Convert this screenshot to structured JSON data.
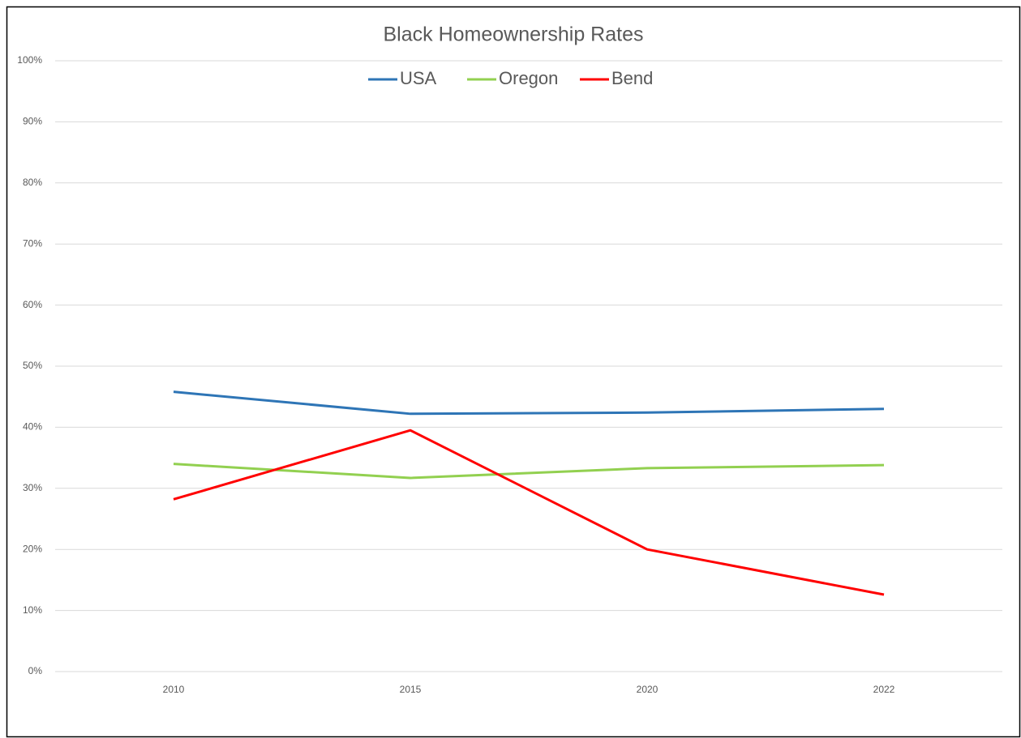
{
  "chart_data": {
    "type": "line",
    "title": "Black Homeownership Rates",
    "categories": [
      "2010",
      "2015",
      "2020",
      "2022"
    ],
    "series": [
      {
        "name": "USA",
        "color": "#2e75b6",
        "values": [
          45.8,
          42.2,
          42.4,
          43.0
        ]
      },
      {
        "name": "Oregon",
        "color": "#92d050",
        "values": [
          34.0,
          31.7,
          33.3,
          33.8
        ]
      },
      {
        "name": "Bend",
        "color": "#ff0000",
        "values": [
          28.2,
          39.5,
          20.0,
          12.6
        ]
      }
    ],
    "ylim": [
      0,
      100
    ],
    "yticks": [
      {
        "value": 0,
        "label": "0%"
      },
      {
        "value": 10,
        "label": "10%"
      },
      {
        "value": 20,
        "label": "20%"
      },
      {
        "value": 30,
        "label": "30%"
      },
      {
        "value": 40,
        "label": "40%"
      },
      {
        "value": 50,
        "label": "50%"
      },
      {
        "value": 60,
        "label": "60%"
      },
      {
        "value": 70,
        "label": "70%"
      },
      {
        "value": 80,
        "label": "80%"
      },
      {
        "value": 90,
        "label": "90%"
      },
      {
        "value": 100,
        "label": "100%"
      }
    ],
    "grid": true,
    "legend": "top"
  }
}
